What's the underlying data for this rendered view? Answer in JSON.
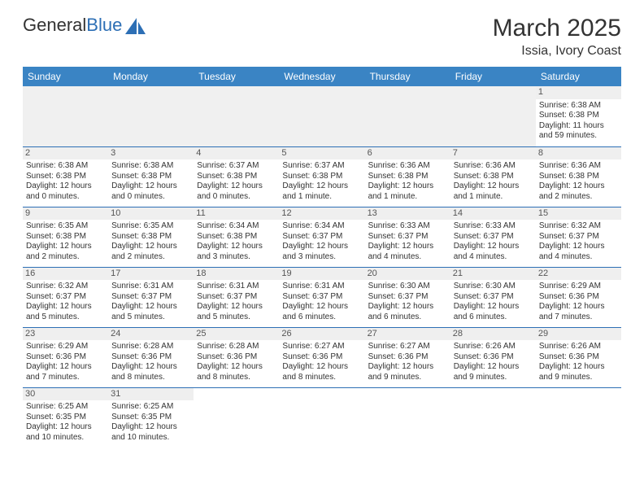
{
  "logo": {
    "part1": "General",
    "part2": "Blue"
  },
  "title": "March 2025",
  "location": "Issia, Ivory Coast",
  "columns": [
    "Sunday",
    "Monday",
    "Tuesday",
    "Wednesday",
    "Thursday",
    "Friday",
    "Saturday"
  ],
  "colors": {
    "header_bg": "#3a84c4",
    "header_fg": "#ffffff",
    "rule": "#2d6fb5",
    "daynum_bg": "#efefef",
    "logo_blue": "#2d6fb5"
  },
  "weeks": [
    [
      null,
      null,
      null,
      null,
      null,
      null,
      {
        "n": "1",
        "sunrise": "Sunrise: 6:38 AM",
        "sunset": "Sunset: 6:38 PM",
        "daylight": "Daylight: 11 hours and 59 minutes."
      }
    ],
    [
      {
        "n": "2",
        "sunrise": "Sunrise: 6:38 AM",
        "sunset": "Sunset: 6:38 PM",
        "daylight": "Daylight: 12 hours and 0 minutes."
      },
      {
        "n": "3",
        "sunrise": "Sunrise: 6:38 AM",
        "sunset": "Sunset: 6:38 PM",
        "daylight": "Daylight: 12 hours and 0 minutes."
      },
      {
        "n": "4",
        "sunrise": "Sunrise: 6:37 AM",
        "sunset": "Sunset: 6:38 PM",
        "daylight": "Daylight: 12 hours and 0 minutes."
      },
      {
        "n": "5",
        "sunrise": "Sunrise: 6:37 AM",
        "sunset": "Sunset: 6:38 PM",
        "daylight": "Daylight: 12 hours and 1 minute."
      },
      {
        "n": "6",
        "sunrise": "Sunrise: 6:36 AM",
        "sunset": "Sunset: 6:38 PM",
        "daylight": "Daylight: 12 hours and 1 minute."
      },
      {
        "n": "7",
        "sunrise": "Sunrise: 6:36 AM",
        "sunset": "Sunset: 6:38 PM",
        "daylight": "Daylight: 12 hours and 1 minute."
      },
      {
        "n": "8",
        "sunrise": "Sunrise: 6:36 AM",
        "sunset": "Sunset: 6:38 PM",
        "daylight": "Daylight: 12 hours and 2 minutes."
      }
    ],
    [
      {
        "n": "9",
        "sunrise": "Sunrise: 6:35 AM",
        "sunset": "Sunset: 6:38 PM",
        "daylight": "Daylight: 12 hours and 2 minutes."
      },
      {
        "n": "10",
        "sunrise": "Sunrise: 6:35 AM",
        "sunset": "Sunset: 6:38 PM",
        "daylight": "Daylight: 12 hours and 2 minutes."
      },
      {
        "n": "11",
        "sunrise": "Sunrise: 6:34 AM",
        "sunset": "Sunset: 6:38 PM",
        "daylight": "Daylight: 12 hours and 3 minutes."
      },
      {
        "n": "12",
        "sunrise": "Sunrise: 6:34 AM",
        "sunset": "Sunset: 6:37 PM",
        "daylight": "Daylight: 12 hours and 3 minutes."
      },
      {
        "n": "13",
        "sunrise": "Sunrise: 6:33 AM",
        "sunset": "Sunset: 6:37 PM",
        "daylight": "Daylight: 12 hours and 4 minutes."
      },
      {
        "n": "14",
        "sunrise": "Sunrise: 6:33 AM",
        "sunset": "Sunset: 6:37 PM",
        "daylight": "Daylight: 12 hours and 4 minutes."
      },
      {
        "n": "15",
        "sunrise": "Sunrise: 6:32 AM",
        "sunset": "Sunset: 6:37 PM",
        "daylight": "Daylight: 12 hours and 4 minutes."
      }
    ],
    [
      {
        "n": "16",
        "sunrise": "Sunrise: 6:32 AM",
        "sunset": "Sunset: 6:37 PM",
        "daylight": "Daylight: 12 hours and 5 minutes."
      },
      {
        "n": "17",
        "sunrise": "Sunrise: 6:31 AM",
        "sunset": "Sunset: 6:37 PM",
        "daylight": "Daylight: 12 hours and 5 minutes."
      },
      {
        "n": "18",
        "sunrise": "Sunrise: 6:31 AM",
        "sunset": "Sunset: 6:37 PM",
        "daylight": "Daylight: 12 hours and 5 minutes."
      },
      {
        "n": "19",
        "sunrise": "Sunrise: 6:31 AM",
        "sunset": "Sunset: 6:37 PM",
        "daylight": "Daylight: 12 hours and 6 minutes."
      },
      {
        "n": "20",
        "sunrise": "Sunrise: 6:30 AM",
        "sunset": "Sunset: 6:37 PM",
        "daylight": "Daylight: 12 hours and 6 minutes."
      },
      {
        "n": "21",
        "sunrise": "Sunrise: 6:30 AM",
        "sunset": "Sunset: 6:37 PM",
        "daylight": "Daylight: 12 hours and 6 minutes."
      },
      {
        "n": "22",
        "sunrise": "Sunrise: 6:29 AM",
        "sunset": "Sunset: 6:36 PM",
        "daylight": "Daylight: 12 hours and 7 minutes."
      }
    ],
    [
      {
        "n": "23",
        "sunrise": "Sunrise: 6:29 AM",
        "sunset": "Sunset: 6:36 PM",
        "daylight": "Daylight: 12 hours and 7 minutes."
      },
      {
        "n": "24",
        "sunrise": "Sunrise: 6:28 AM",
        "sunset": "Sunset: 6:36 PM",
        "daylight": "Daylight: 12 hours and 8 minutes."
      },
      {
        "n": "25",
        "sunrise": "Sunrise: 6:28 AM",
        "sunset": "Sunset: 6:36 PM",
        "daylight": "Daylight: 12 hours and 8 minutes."
      },
      {
        "n": "26",
        "sunrise": "Sunrise: 6:27 AM",
        "sunset": "Sunset: 6:36 PM",
        "daylight": "Daylight: 12 hours and 8 minutes."
      },
      {
        "n": "27",
        "sunrise": "Sunrise: 6:27 AM",
        "sunset": "Sunset: 6:36 PM",
        "daylight": "Daylight: 12 hours and 9 minutes."
      },
      {
        "n": "28",
        "sunrise": "Sunrise: 6:26 AM",
        "sunset": "Sunset: 6:36 PM",
        "daylight": "Daylight: 12 hours and 9 minutes."
      },
      {
        "n": "29",
        "sunrise": "Sunrise: 6:26 AM",
        "sunset": "Sunset: 6:36 PM",
        "daylight": "Daylight: 12 hours and 9 minutes."
      }
    ],
    [
      {
        "n": "30",
        "sunrise": "Sunrise: 6:25 AM",
        "sunset": "Sunset: 6:35 PM",
        "daylight": "Daylight: 12 hours and 10 minutes."
      },
      {
        "n": "31",
        "sunrise": "Sunrise: 6:25 AM",
        "sunset": "Sunset: 6:35 PM",
        "daylight": "Daylight: 12 hours and 10 minutes."
      },
      null,
      null,
      null,
      null,
      null
    ]
  ]
}
